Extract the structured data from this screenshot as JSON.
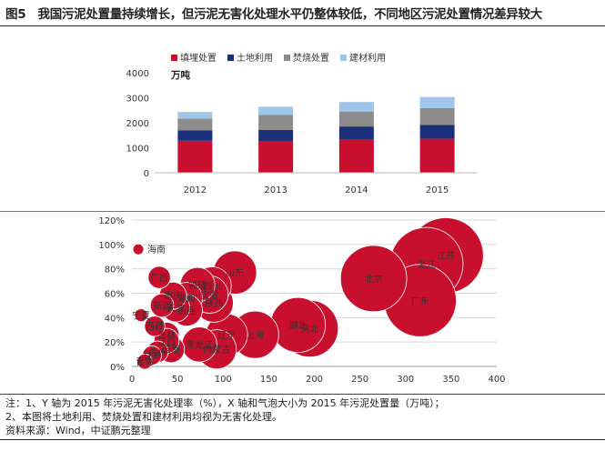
{
  "figure": {
    "title": "图5　我国污泥处置量持续增长，但污泥无害化处理水平仍整体较低，不同地区污泥处置情况差异较大"
  },
  "notes": [
    "注：1、Y 轴为 2015 年污泥无害化处理率（%），X 轴和气泡大小为 2015 年污泥处置量（万吨）；",
    "2、本图将土地利用、焚烧处置和建材利用均视为无害化处理。",
    "资料来源：Wind，中证鹏元整理"
  ],
  "colors": {
    "red": "#c8102e",
    "navy": "#1a2e7a",
    "gray": "#8c8c8c",
    "lightblue": "#9fc5e8"
  },
  "chart_data": [
    {
      "type": "bar",
      "stacked": true,
      "categories": [
        "2012",
        "2013",
        "2014",
        "2015"
      ],
      "ylabel": "万吨",
      "ylim": [
        0,
        4000
      ],
      "yticks": [
        "0",
        "1000",
        "2000",
        "3000",
        "4000"
      ],
      "legend_position": "top",
      "series": [
        {
          "name": "填埋处置",
          "color": "#c8102e",
          "values": [
            1280,
            1250,
            1330,
            1360
          ]
        },
        {
          "name": "土地利用",
          "color": "#1a2e7a",
          "values": [
            420,
            460,
            520,
            550
          ]
        },
        {
          "name": "焚烧处置",
          "color": "#8c8c8c",
          "values": [
            470,
            600,
            600,
            680
          ]
        },
        {
          "name": "建材利用",
          "color": "#9fc5e8",
          "values": [
            260,
            330,
            380,
            440
          ]
        }
      ]
    },
    {
      "type": "scatter",
      "bubble": true,
      "xlim": [
        0,
        400
      ],
      "ylim": [
        0,
        120
      ],
      "xticks": [
        "0",
        "50",
        "100",
        "150",
        "200",
        "250",
        "300",
        "350",
        "400"
      ],
      "yticks": [
        "0%",
        "20%",
        "40%",
        "60%",
        "80%",
        "100%",
        "120%"
      ],
      "grid": true,
      "color": "#c8102e",
      "points": [
        {
          "label": "海南",
          "x": 7,
          "y": 96
        },
        {
          "label": "广西",
          "x": 30,
          "y": 73
        },
        {
          "label": "福建",
          "x": 72,
          "y": 67
        },
        {
          "label": "四川",
          "x": 88,
          "y": 66
        },
        {
          "label": "山东",
          "x": 113,
          "y": 77
        },
        {
          "label": "安徽",
          "x": 85,
          "y": 59
        },
        {
          "label": "重庆",
          "x": 45,
          "y": 58
        },
        {
          "label": "湖南",
          "x": 60,
          "y": 56
        },
        {
          "label": "陕西",
          "x": 90,
          "y": 52
        },
        {
          "label": "新疆",
          "x": 33,
          "y": 50
        },
        {
          "label": "天津",
          "x": 48,
          "y": 48
        },
        {
          "label": "山西",
          "x": 60,
          "y": 46
        },
        {
          "label": "宁夏",
          "x": 10,
          "y": 42
        },
        {
          "label": "西藏",
          "x": 25,
          "y": 33
        },
        {
          "label": "吉林",
          "x": 38,
          "y": 26
        },
        {
          "label": "江西",
          "x": 38,
          "y": 21
        },
        {
          "label": "辽宁",
          "x": 104,
          "y": 26
        },
        {
          "label": "上海",
          "x": 135,
          "y": 26
        },
        {
          "label": "湖北",
          "x": 182,
          "y": 34
        },
        {
          "label": "河北",
          "x": 195,
          "y": 31
        },
        {
          "label": "贵州",
          "x": 28,
          "y": 12
        },
        {
          "label": "云南",
          "x": 43,
          "y": 14
        },
        {
          "label": "甘肃",
          "x": 22,
          "y": 9
        },
        {
          "label": "黑龙江",
          "x": 74,
          "y": 18
        },
        {
          "label": "内蒙古",
          "x": 93,
          "y": 14
        },
        {
          "label": "青海",
          "x": 14,
          "y": 4
        },
        {
          "label": "北京",
          "x": 265,
          "y": 72
        },
        {
          "label": "浙江",
          "x": 323,
          "y": 84
        },
        {
          "label": "广东",
          "x": 316,
          "y": 54
        },
        {
          "label": "江苏",
          "x": 344,
          "y": 91
        }
      ]
    }
  ]
}
